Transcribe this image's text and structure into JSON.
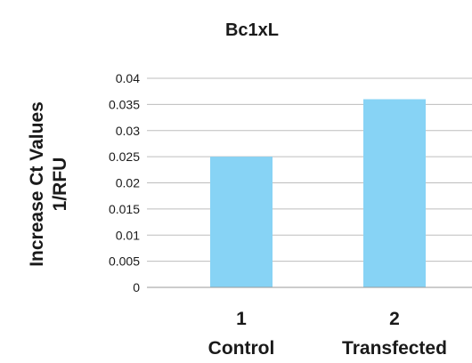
{
  "chart_data": {
    "type": "bar",
    "title": "Bc1xL",
    "ylabel": [
      "Increase Ct Values",
      "1/RFU"
    ],
    "xlabel": "",
    "categories": [
      {
        "number": "1",
        "name": "Control"
      },
      {
        "number": "2",
        "name": "Transfected"
      }
    ],
    "values": [
      0.025,
      0.036
    ],
    "ylim": [
      0,
      0.04
    ],
    "yticks": [
      "0",
      "0.005",
      "0.01",
      "0.015",
      "0.02",
      "0.025",
      "0.03",
      "0.035",
      "0.04"
    ],
    "grid": true,
    "legend": "none",
    "bar_color": "#87d3f5"
  }
}
